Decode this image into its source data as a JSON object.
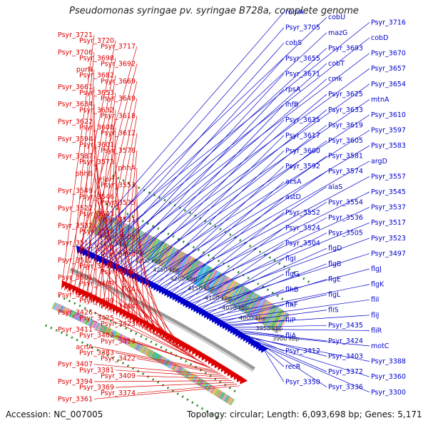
{
  "title": "Pseudomonas syringae pv. syringae B728a, complete genome",
  "footer": {
    "accession": "Accession: NC_007005",
    "topology": "Topology: circular; Length: 6,093,698 bp; Genes: 5,171"
  },
  "colors": {
    "left_strand": "#dd0000",
    "right_strand": "#0000cc",
    "backbone": "#999999",
    "gc_dots": "#228822"
  },
  "scale_labels": [
    "4400 kbp",
    "4350 kbp",
    "4300 kbp",
    "4250 kbp",
    "4200 kbp",
    "4150 kbp",
    "4100 kbp",
    "4050 kbp",
    "4000 kbp",
    "3950 kbp",
    "3900 kbp"
  ],
  "left_labels": [
    "Psyr_3721",
    "Psyr_3720",
    "Psyr_3717",
    "Psyr_3706",
    "Psyr_3698",
    "Psyr_3692",
    "purN",
    "Psyr_3682",
    "Psyr_3669",
    "Psyr_3661",
    "Psyr_3653",
    "Psyr_3649",
    "Psyr_3634",
    "Psyr_3632",
    "Psyr_3618",
    "Psyr_3622",
    "Psyr_3608",
    "Psyr_3612",
    "Psyr_3594",
    "Psyr_3601",
    "Psyr_3578",
    "Psyr_3587",
    "Psyr_3573",
    "phhA",
    "phhB",
    "ribH",
    "Psyr_3553",
    "Psyr_3549",
    "Psyr_3546",
    "Psyr_3535",
    "Psyr_3522",
    "Psyr_3543",
    "Psyr_3531",
    "Psyr_3532",
    "Psyr_3518",
    "Psyr_3503",
    "Psyr_3511",
    "Psyr_3520",
    "Psyr_3494",
    "Psyr_3512",
    "Psyr_3498",
    "Psyr_3488",
    "Psyr_3501",
    "Psyr_3489",
    "flgA",
    "Psyr_3500",
    "Psyr_3490",
    "Psyr_3484",
    "Psyr_3426",
    "Psyr_3425",
    "Psyr_3423",
    "Psyr_3411",
    "Psyr_3402",
    "Psyr_3413",
    "acnA",
    "Psyr_3383",
    "Psyr_3422",
    "Psyr_3407",
    "Psyr_3381",
    "Psyr_3409",
    "Psyr_3394",
    "Psyr_3369",
    "Psyr_3374",
    "Psyr_3361"
  ],
  "right_labels": [
    "rumA",
    "cobU",
    "Psyr_3716",
    "Psyr_3705",
    "mazG",
    "cobD",
    "cobS",
    "Psyr_3693",
    "Psyr_3670",
    "Psyr_3655",
    "cobT",
    "Psyr_3657",
    "Psyr_3671",
    "cmk",
    "Psyr_3654",
    "rpsA",
    "Psyr_3625",
    "mtnA",
    "ihfB",
    "Psyr_3633",
    "Psyr_3610",
    "Psyr_3635",
    "Psyr_3619",
    "Psyr_3597",
    "Psyr_3617",
    "Psyr_3605",
    "Psyr_3583",
    "Psyr_3600",
    "Psyr_3581",
    "argD",
    "Psyr_3592",
    "Psyr_3574",
    "Psyr_3557",
    "acsA",
    "alaS",
    "Psyr_3545",
    "astD",
    "Psyr_3554",
    "Psyr_3537",
    "Psyr_3552",
    "Psyr_3536",
    "Psyr_3517",
    "Psyr_3524",
    "Psyr_3505",
    "Psyr_3523",
    "Psyr_3504",
    "flgD",
    "Psyr_3497",
    "flgI",
    "flgB",
    "flgJ",
    "flgG",
    "flgE",
    "flgK",
    "flhB",
    "flgL",
    "fliI",
    "flhF",
    "fliS",
    "fliJ",
    "fliP",
    "Psyr_3435",
    "fliR",
    "fliA",
    "Psyr_3424",
    "motC",
    "Psyr_3412",
    "Psyr_3403",
    "Psyr_3388",
    "recR",
    "Psyr_3372",
    "Psyr_3360",
    "Psyr_3350",
    "Psyr_3336",
    "Psyr_3300"
  ]
}
